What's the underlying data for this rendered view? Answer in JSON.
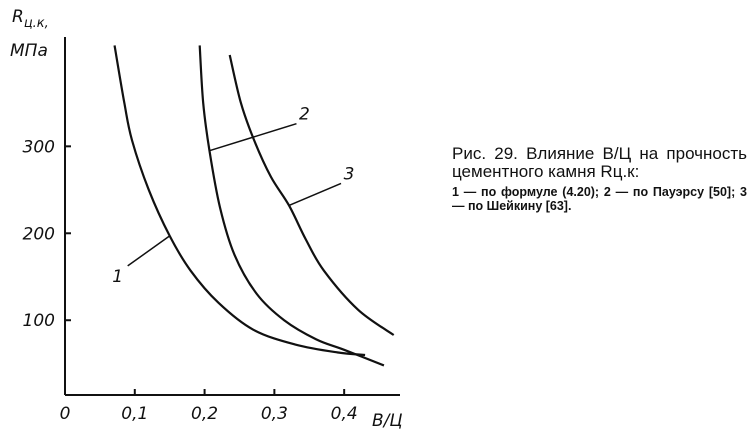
{
  "chart_data": {
    "type": "line",
    "ylabel": {
      "symbol": "R",
      "subscript": "ц.к,",
      "unit": "МПа"
    },
    "xlabel": "В/Ц",
    "caption": "Рис. 29. Влияние В/Ц на прочность цементного камня Rц.к:",
    "caption_note": "1 — по формуле (4.20); 2 — по Пауэрсу [50]; 3 — по Шейкину [63].",
    "xlim": [
      0,
      0.48
    ],
    "ylim": [
      14,
      420
    ],
    "xticks": [
      0,
      {
        "value": 0.1,
        "label": "0,1"
      },
      {
        "value": 0.2,
        "label": "0,2"
      },
      {
        "value": 0.3,
        "label": "0,3"
      },
      {
        "value": 0.4,
        "label": "0,4"
      }
    ],
    "yticks": [
      100,
      200,
      300
    ],
    "grid": false,
    "series": [
      {
        "name": "1",
        "color": "#111111",
        "x": [
          0.071,
          0.085,
          0.096,
          0.12,
          0.15,
          0.18,
          0.22,
          0.27,
          0.33,
          0.39,
          0.43
        ],
        "values": [
          416,
          350,
          307,
          250,
          197,
          157,
          120,
          89,
          72,
          63,
          60
        ]
      },
      {
        "name": "2",
        "color": "#111111",
        "x": [
          0.193,
          0.198,
          0.207,
          0.222,
          0.243,
          0.275,
          0.314,
          0.36,
          0.4,
          0.457
        ],
        "values": [
          416,
          350,
          295,
          230,
          175,
          130,
          100,
          78,
          66,
          48
        ]
      },
      {
        "name": "3",
        "color": "#111111",
        "x": [
          0.236,
          0.252,
          0.271,
          0.295,
          0.321,
          0.345,
          0.371,
          0.42,
          0.471
        ],
        "values": [
          405,
          350,
          307,
          265,
          232,
          193,
          157,
          112,
          83
        ]
      }
    ]
  }
}
